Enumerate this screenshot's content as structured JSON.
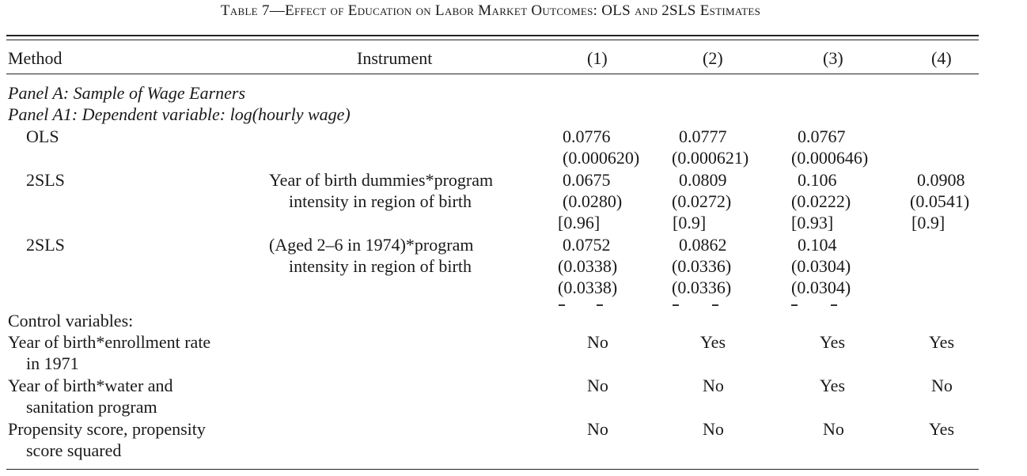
{
  "table": {
    "title": "Table 7—Effect of Education on Labor Market Outcomes: OLS and 2SLS Estimates",
    "header": {
      "method": "Method",
      "instrument": "Instrument",
      "col1": "(1)",
      "col2": "(2)",
      "col3": "(3)",
      "col4": "(4)"
    },
    "panel_a": "Panel A: Sample of Wage Earners",
    "panel_a1": "Panel A1: Dependent variable: log(hourly wage)",
    "ols": {
      "method": "OLS",
      "c1": "0.0776",
      "c1se": "(0.000620)",
      "c2": "0.0777",
      "c2se": "(0.000621)",
      "c3": "0.0767",
      "c3se": "(0.000646)"
    },
    "sls1": {
      "method": "2SLS",
      "instr1": "Year of birth dummies*program",
      "instr2": "intensity in region of birth",
      "c1": "0.0675",
      "c1se": "(0.0280)",
      "c1b": "[0.96]",
      "c2": "0.0809",
      "c2se": "(0.0272)",
      "c2b": "[0.9]",
      "c3": "0.106",
      "c3se": "(0.0222)",
      "c3b": "[0.93]",
      "c4": "0.0908",
      "c4se": "(0.0541)",
      "c4b": "[0.9]"
    },
    "sls2": {
      "method": "2SLS",
      "instr1": "(Aged 2–6 in 1974)*program",
      "instr2": "intensity in region of birth",
      "c1": "0.0752",
      "c1se": "(0.0338)",
      "c1se2": "(0.0338)",
      "c2": "0.0862",
      "c2se": "(0.0336)",
      "c2se2": "(0.0336)",
      "c3": "0.104",
      "c3se": "(0.0304)",
      "c3se2": "(0.0304)"
    },
    "controls": {
      "label": "Control variables:",
      "enroll": {
        "l1": "Year of birth*enrollment rate",
        "l2": "in 1971",
        "v": [
          "No",
          "Yes",
          "Yes",
          "Yes"
        ]
      },
      "water": {
        "l1": "Year of birth*water and",
        "l2": "sanitation program",
        "v": [
          "No",
          "No",
          "Yes",
          "No"
        ]
      },
      "prop": {
        "l1": "Propensity score, propensity",
        "l2": "score squared",
        "v": [
          "No",
          "No",
          "No",
          "Yes"
        ]
      }
    }
  }
}
